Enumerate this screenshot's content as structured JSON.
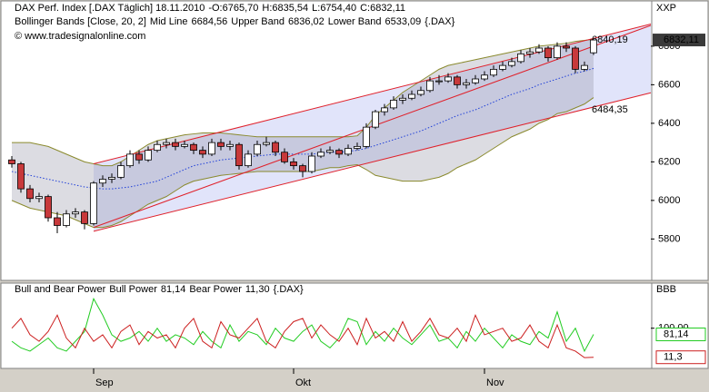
{
  "chart_data": [
    {
      "type": "candlestick",
      "title": "DAX Perf. Index [.DAX Täglich] 18.11.2010",
      "ohlc_labels": [
        "-O:6765,70",
        "H:6835,54",
        "L:6754,40",
        "C:6832,11"
      ],
      "watermark": "© www.tradesignalonline.com",
      "axis_title": "XXP",
      "categories": [
        null,
        null,
        null,
        null,
        null,
        null,
        null,
        null,
        null,
        "Sep",
        null,
        null,
        null,
        null,
        null,
        null,
        null,
        null,
        null,
        null,
        null,
        null,
        null,
        null,
        null,
        null,
        null,
        null,
        null,
        null,
        null,
        "Okt",
        null,
        null,
        null,
        null,
        null,
        null,
        null,
        null,
        null,
        null,
        null,
        null,
        null,
        null,
        null,
        null,
        null,
        null,
        null,
        null,
        "Nov",
        null,
        null,
        null,
        null,
        null,
        null,
        null,
        null,
        null,
        null,
        null,
        null
      ],
      "candles": [
        [
          6210,
          6230,
          6170,
          6190
        ],
        [
          6190,
          6200,
          6040,
          6060
        ],
        [
          6060,
          6080,
          5990,
          6010
        ],
        [
          6010,
          6040,
          5990,
          6020
        ],
        [
          6020,
          6030,
          5890,
          5910
        ],
        [
          5910,
          5940,
          5830,
          5870
        ],
        [
          5870,
          5950,
          5860,
          5930
        ],
        [
          5930,
          5960,
          5910,
          5940
        ],
        [
          5940,
          5950,
          5850,
          5880
        ],
        [
          5880,
          6100,
          5870,
          6090
        ],
        [
          6090,
          6130,
          6070,
          6110
        ],
        [
          6110,
          6140,
          6090,
          6120
        ],
        [
          6120,
          6200,
          6110,
          6180
        ],
        [
          6180,
          6260,
          6170,
          6240
        ],
        [
          6240,
          6260,
          6190,
          6210
        ],
        [
          6210,
          6280,
          6200,
          6260
        ],
        [
          6260,
          6310,
          6250,
          6290
        ],
        [
          6290,
          6320,
          6270,
          6300
        ],
        [
          6300,
          6320,
          6260,
          6280
        ],
        [
          6280,
          6310,
          6270,
          6290
        ],
        [
          6290,
          6300,
          6240,
          6260
        ],
        [
          6260,
          6280,
          6220,
          6240
        ],
        [
          6240,
          6320,
          6230,
          6300
        ],
        [
          6300,
          6320,
          6260,
          6280
        ],
        [
          6280,
          6310,
          6260,
          6290
        ],
        [
          6290,
          6300,
          6160,
          6180
        ],
        [
          6180,
          6260,
          6170,
          6240
        ],
        [
          6240,
          6310,
          6230,
          6290
        ],
        [
          6290,
          6330,
          6280,
          6300
        ],
        [
          6300,
          6310,
          6230,
          6250
        ],
        [
          6250,
          6270,
          6190,
          6200
        ],
        [
          6200,
          6220,
          6160,
          6180
        ],
        [
          6180,
          6190,
          6120,
          6150
        ],
        [
          6150,
          6250,
          6140,
          6230
        ],
        [
          6230,
          6270,
          6220,
          6250
        ],
        [
          6250,
          6280,
          6240,
          6260
        ],
        [
          6260,
          6270,
          6220,
          6240
        ],
        [
          6240,
          6290,
          6230,
          6270
        ],
        [
          6270,
          6300,
          6260,
          6280
        ],
        [
          6280,
          6400,
          6270,
          6380
        ],
        [
          6380,
          6470,
          6370,
          6460
        ],
        [
          6460,
          6500,
          6440,
          6480
        ],
        [
          6480,
          6540,
          6470,
          6520
        ],
        [
          6520,
          6550,
          6500,
          6530
        ],
        [
          6530,
          6570,
          6520,
          6550
        ],
        [
          6550,
          6590,
          6540,
          6570
        ],
        [
          6570,
          6640,
          6560,
          6620
        ],
        [
          6620,
          6650,
          6600,
          6620
        ],
        [
          6620,
          6660,
          6610,
          6640
        ],
        [
          6640,
          6650,
          6580,
          6600
        ],
        [
          6600,
          6630,
          6580,
          6610
        ],
        [
          6610,
          6650,
          6600,
          6630
        ],
        [
          6630,
          6670,
          6620,
          6650
        ],
        [
          6650,
          6700,
          6640,
          6680
        ],
        [
          6680,
          6720,
          6670,
          6700
        ],
        [
          6700,
          6740,
          6690,
          6720
        ],
        [
          6720,
          6780,
          6710,
          6760
        ],
        [
          6760,
          6790,
          6740,
          6770
        ],
        [
          6770,
          6810,
          6760,
          6790
        ],
        [
          6790,
          6800,
          6720,
          6740
        ],
        [
          6740,
          6820,
          6730,
          6800
        ],
        [
          6800,
          6820,
          6770,
          6790
        ],
        [
          6790,
          6800,
          6660,
          6680
        ],
        [
          6680,
          6720,
          6670,
          6700
        ],
        [
          6765.7,
          6835.54,
          6754.4,
          6832.11
        ]
      ],
      "up_color": "#ffffff",
      "down_color": "#c8393b",
      "ylim": [
        5590,
        7030
      ],
      "yticks": [
        5800,
        6000,
        6200,
        6400,
        6600,
        6800
      ],
      "last_label": "6832,11",
      "bands": {
        "title": "Bollinger Bands [Close, 20, 2]",
        "symbol": "{.DAX}",
        "fill": "#8c8ca0",
        "series": [
          {
            "name": "Mid Line",
            "color": "#1f3fd8",
            "last_label": "6684,56",
            "values": [
              6150,
              6140,
              6130,
              6120,
              6110,
              6100,
              6090,
              6080,
              6070,
              6065,
              6060,
              6060,
              6065,
              6070,
              6080,
              6090,
              6100,
              6120,
              6140,
              6160,
              6180,
              6190,
              6200,
              6210,
              6215,
              6220,
              6225,
              6230,
              6235,
              6240,
              6240,
              6240,
              6240,
              6240,
              6245,
              6250,
              6250,
              6255,
              6260,
              6270,
              6285,
              6300,
              6315,
              6330,
              6345,
              6360,
              6380,
              6400,
              6420,
              6440,
              6455,
              6470,
              6490,
              6510,
              6530,
              6550,
              6565,
              6580,
              6600,
              6615,
              6630,
              6645,
              6660,
              6670,
              6684.56
            ]
          },
          {
            "name": "Upper Band",
            "color": "#8a8a2e",
            "last_label": "6836,02",
            "values": [
              6300,
              6300,
              6300,
              6290,
              6280,
              6260,
              6240,
              6220,
              6200,
              6190,
              6180,
              6180,
              6200,
              6230,
              6260,
              6290,
              6310,
              6320,
              6330,
              6340,
              6345,
              6350,
              6350,
              6350,
              6345,
              6340,
              6335,
              6330,
              6330,
              6330,
              6330,
              6330,
              6330,
              6330,
              6330,
              6330,
              6330,
              6330,
              6335,
              6380,
              6440,
              6480,
              6520,
              6560,
              6590,
              6620,
              6650,
              6680,
              6700,
              6710,
              6720,
              6730,
              6740,
              6750,
              6760,
              6770,
              6780,
              6790,
              6800,
              6805,
              6810,
              6815,
              6825,
              6830,
              6836.02
            ]
          },
          {
            "name": "Lower Band",
            "color": "#8a8a2e",
            "last_label": "6533,09",
            "values": [
              6000,
              5980,
              5960,
              5950,
              5940,
              5930,
              5920,
              5900,
              5880,
              5860,
              5860,
              5870,
              5890,
              5920,
              5950,
              5980,
              6000,
              6020,
              6050,
              6080,
              6100,
              6110,
              6120,
              6130,
              6135,
              6140,
              6145,
              6150,
              6150,
              6150,
              6150,
              6150,
              6150,
              6150,
              6160,
              6170,
              6170,
              6180,
              6185,
              6160,
              6130,
              6120,
              6110,
              6100,
              6100,
              6100,
              6110,
              6120,
              6140,
              6170,
              6190,
              6210,
              6240,
              6270,
              6300,
              6330,
              6350,
              6370,
              6400,
              6420,
              6450,
              6460,
              6480,
              6500,
              6533.09
            ]
          }
        ]
      },
      "channel": {
        "color": "#e0202a",
        "fill": "#9aa4f0",
        "x": [
          9,
          64
        ],
        "upper": [
          6190,
          6840.19
        ],
        "middle": [
          5860,
          6800
        ],
        "lower": [
          5840,
          6484.35
        ],
        "upper_label": "6840,19",
        "lower_label": "6484,35"
      }
    },
    {
      "type": "line",
      "title": "Bull and Bear Power",
      "symbol": "{.DAX}",
      "axis_title": "BBB",
      "ylim": [
        -20,
        235
      ],
      "yticks": [
        {
          "value": 100,
          "label": "100,00"
        }
      ],
      "series": [
        {
          "name": "Bull Power",
          "color": "#22cc22",
          "last_label": "81,14",
          "axis_label": "81,14",
          "values": [
            60,
            40,
            30,
            50,
            70,
            40,
            30,
            60,
            90,
            190,
            140,
            80,
            60,
            70,
            90,
            60,
            100,
            60,
            80,
            70,
            50,
            90,
            60,
            40,
            110,
            60,
            90,
            80,
            50,
            100,
            70,
            60,
            90,
            110,
            60,
            40,
            70,
            130,
            120,
            50,
            90,
            60,
            100,
            70,
            50,
            80,
            110,
            60,
            70,
            40,
            90,
            60,
            100,
            70,
            40,
            80,
            60,
            50,
            90,
            70,
            150,
            60,
            100,
            30,
            81.14
          ]
        },
        {
          "name": "Bear Power",
          "color": "#cc1f1f",
          "last_label": "11,30",
          "axis_label": "11,3",
          "values": [
            100,
            130,
            80,
            60,
            90,
            140,
            70,
            40,
            100,
            60,
            80,
            40,
            90,
            110,
            50,
            90,
            70,
            80,
            40,
            100,
            130,
            60,
            40,
            120,
            80,
            70,
            100,
            130,
            60,
            40,
            90,
            120,
            130,
            70,
            110,
            80,
            60,
            100,
            50,
            130,
            70,
            90,
            60,
            120,
            60,
            90,
            130,
            80,
            70,
            100,
            60,
            140,
            80,
            90,
            100,
            60,
            70,
            110,
            60,
            40,
            110,
            40,
            30,
            10,
            11.3
          ]
        }
      ]
    }
  ]
}
